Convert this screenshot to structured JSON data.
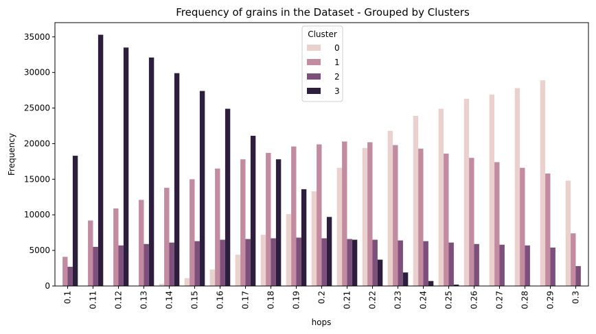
{
  "chart_data": {
    "type": "bar",
    "title": "Frequency of grains in the Dataset - Grouped by Clusters",
    "xlabel": "hops",
    "ylabel": "Frequency",
    "ylim": [
      0,
      37000
    ],
    "yticks": [
      0,
      5000,
      10000,
      15000,
      20000,
      25000,
      30000,
      35000
    ],
    "grid": false,
    "legend": {
      "title": "Cluster",
      "placement": "top-center"
    },
    "categories": [
      "0.1",
      "0.11",
      "0.12",
      "0.13",
      "0.14",
      "0.15",
      "0.16",
      "0.17",
      "0.18",
      "0.19",
      "0.2",
      "0.21",
      "0.22",
      "0.23",
      "0.24",
      "0.25",
      "0.26",
      "0.27",
      "0.28",
      "0.29",
      "0.3"
    ],
    "series": [
      {
        "name": "0",
        "color": "#ebd1cd",
        "values": [
          0,
          0,
          0,
          0,
          300,
          1100,
          2300,
          4400,
          7200,
          10100,
          13300,
          16600,
          19400,
          21800,
          23900,
          24900,
          26300,
          26900,
          27800,
          28900,
          14800
        ]
      },
      {
        "name": "1",
        "color": "#c28ba0",
        "values": [
          4100,
          9200,
          10900,
          12100,
          13800,
          15000,
          16500,
          17800,
          18700,
          19600,
          19900,
          20300,
          20200,
          19800,
          19300,
          18600,
          18000,
          17400,
          16600,
          15800,
          7400
        ]
      },
      {
        "name": "2",
        "color": "#7d4f7b",
        "values": [
          2700,
          5500,
          5700,
          5900,
          6100,
          6300,
          6500,
          6600,
          6700,
          6800,
          6700,
          6600,
          6500,
          6400,
          6300,
          6100,
          5900,
          5800,
          5700,
          5400,
          2800
        ]
      },
      {
        "name": "3",
        "color": "#2d1e3e",
        "values": [
          18300,
          35300,
          33500,
          32100,
          29900,
          27400,
          24900,
          21100,
          17800,
          13600,
          9700,
          6500,
          3700,
          1900,
          700,
          200,
          0,
          0,
          0,
          0,
          0
        ]
      }
    ]
  }
}
